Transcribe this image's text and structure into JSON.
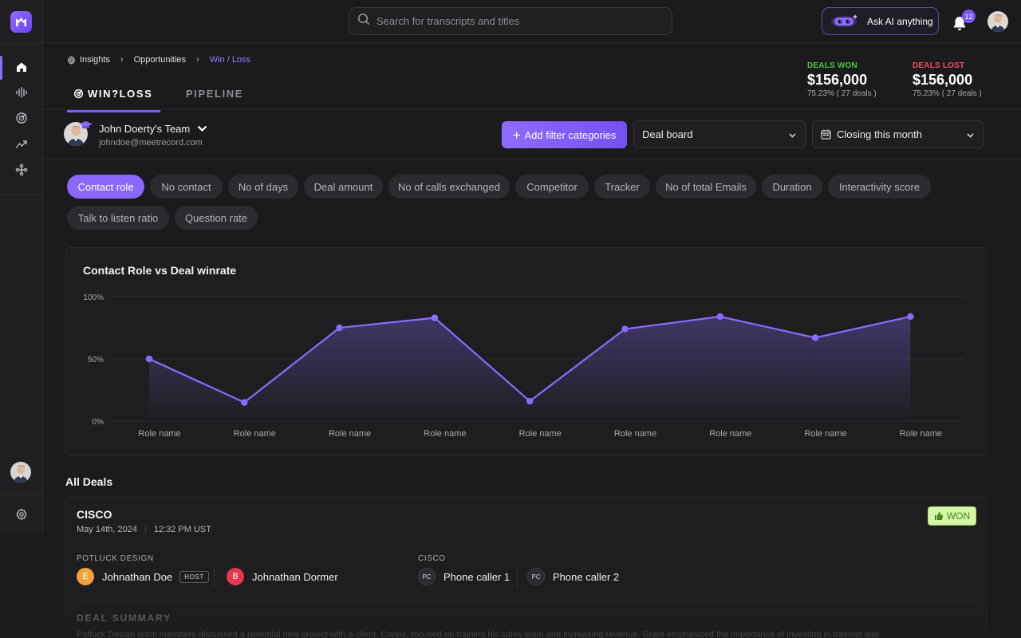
{
  "search": {
    "placeholder": "Search for transcripts and titles"
  },
  "header": {
    "ask_ai_label": "Ask AI anything",
    "notification_count": "12"
  },
  "breadcrumb": [
    "Insights",
    "Opportunities",
    "Win / Loss"
  ],
  "tabs": [
    {
      "label": "WIN?LOSS",
      "active": true
    },
    {
      "label": "PIPELINE",
      "active": false
    }
  ],
  "stats": {
    "won": {
      "label": "DEALS WON",
      "value": "$156,000",
      "sub": "75.23% ( 27 deals )",
      "color": "#4cc93a"
    },
    "lost": {
      "label": "DEALS LOST",
      "value": "$156,000",
      "sub": "75.23% ( 27 deals )",
      "color": "#ff4d5e"
    }
  },
  "team": {
    "name": "John Doerty's Team",
    "email": "johndoe@meetrecord.com"
  },
  "controls": {
    "add_filter_label": "Add filter categories",
    "deal_board": "Deal board",
    "closing": "Closing this month"
  },
  "chips": [
    "Contact role",
    "No contact",
    "No of days",
    "Deal amount",
    "No of calls exchanged",
    "Competitor",
    "Tracker",
    "No of total Emails",
    "Duration",
    "Interactivity score",
    "Talk to listen ratio",
    "Question rate"
  ],
  "active_chip": "Contact role",
  "chart_data": {
    "type": "area",
    "title": "Contact Role vs Deal winrate",
    "categories": [
      "Role name",
      "Role name",
      "Role name",
      "Role name",
      "Role name",
      "Role name",
      "Role name",
      "Role name",
      "Role name"
    ],
    "values": [
      50,
      15,
      75,
      83,
      16,
      74,
      84,
      67,
      84
    ],
    "ylim": [
      0,
      100
    ],
    "yticks": [
      "100%",
      "50%",
      "0%"
    ],
    "ytick_values": [
      100,
      50,
      0
    ],
    "grid": true,
    "color": "#8b6bff"
  },
  "deals": {
    "heading": "All Deals",
    "items": [
      {
        "company": "CISCO",
        "date": "May 14th, 2024",
        "time": "12:32 PM UST",
        "status": "WON",
        "host_group": "POTLUCK DESIGN",
        "client_group": "CISCO",
        "host_people": [
          {
            "initial": "E",
            "name": "Johnathan Doe",
            "badge": "HOST",
            "color": "#f2a23a"
          },
          {
            "initial": "B",
            "name": "Johnathan Dormer",
            "color": "#e5384f"
          }
        ],
        "client_people": [
          {
            "initial": "PC",
            "name": "Phone caller 1"
          },
          {
            "initial": "PC",
            "name": "Phone caller 2"
          }
        ],
        "summary_heading": "DEAL SUMMARY",
        "summary": "Potluck Design team members discussed a potential new project with a client. Carlos, focused on training his sales team and increasing revenue. Grant emphasized the importance of investing in training and"
      }
    ]
  },
  "colors": {
    "accent": "#8b6bff",
    "background": "#1b1b1d"
  }
}
